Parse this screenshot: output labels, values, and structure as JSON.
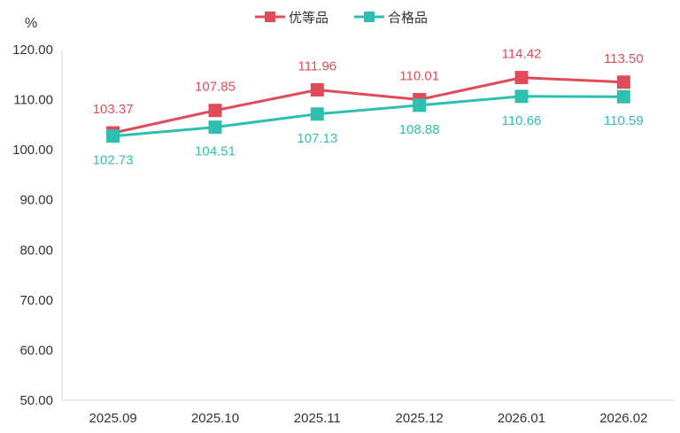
{
  "chart_data": {
    "type": "line",
    "unit_label": "%",
    "categories": [
      "2025.09",
      "2025.10",
      "2025.11",
      "2025.12",
      "2026.01",
      "2026.02"
    ],
    "ylim": [
      50,
      120
    ],
    "yticks": [
      "50.00",
      "60.00",
      "70.00",
      "80.00",
      "90.00",
      "100.00",
      "110.00",
      "120.00"
    ],
    "grid": false,
    "legend_position": "top-center",
    "series": [
      {
        "name": "优等品",
        "color": "#e04b5a",
        "values": [
          103.37,
          107.85,
          111.96,
          110.01,
          114.42,
          113.5
        ],
        "labels": [
          "103.37",
          "107.85",
          "111.96",
          "110.01",
          "114.42",
          "113.50"
        ]
      },
      {
        "name": "合格品",
        "color": "#2fbfb0",
        "values": [
          102.73,
          104.51,
          107.13,
          108.88,
          110.66,
          110.59
        ],
        "labels": [
          "102.73",
          "104.51",
          "107.13",
          "108.88",
          "110.66",
          "110.59"
        ]
      }
    ]
  }
}
